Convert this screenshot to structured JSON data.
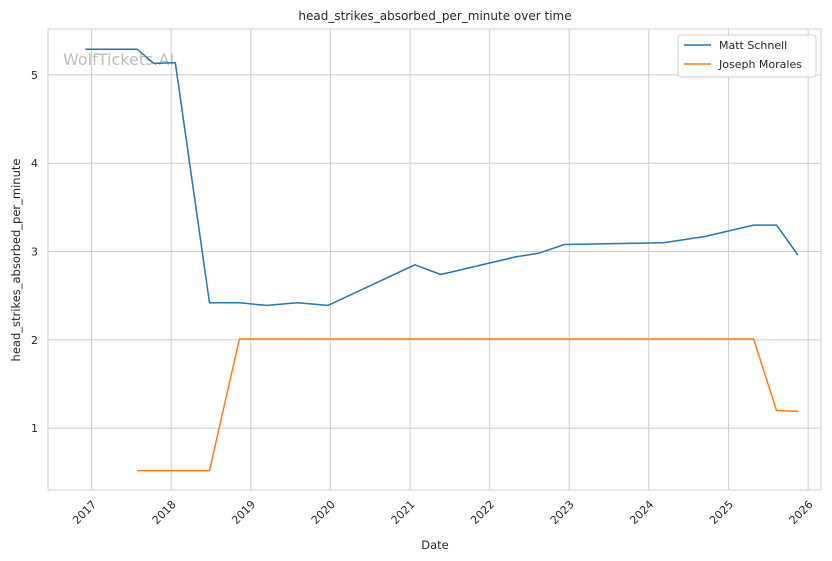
{
  "watermark": "WolfTickets.AI",
  "chart_data": {
    "type": "line",
    "title": "head_strikes_absorbed_per_minute over time",
    "xlabel": "Date",
    "ylabel": "head_strikes_absorbed_per_minute",
    "x_ticks": [
      "2017",
      "2018",
      "2019",
      "2020",
      "2021",
      "2022",
      "2023",
      "2024",
      "2025",
      "2026"
    ],
    "y_ticks": [
      "1",
      "2",
      "3",
      "4",
      "5"
    ],
    "xlim": [
      "2016-06-15",
      "2026-03-01"
    ],
    "ylim": [
      0.3,
      5.52
    ],
    "grid": true,
    "legend_position": "top-right",
    "series": [
      {
        "name": "Matt Schnell",
        "color": "#1f77b4",
        "points": [
          [
            "2016-12-03",
            5.29
          ],
          [
            "2017-07-29",
            5.29
          ],
          [
            "2017-10-14",
            5.13
          ],
          [
            "2018-01-20",
            5.14
          ],
          [
            "2018-06-26",
            2.42
          ],
          [
            "2018-11-10",
            2.42
          ],
          [
            "2019-03-15",
            2.39
          ],
          [
            "2019-08-03",
            2.42
          ],
          [
            "2019-12-21",
            2.39
          ],
          [
            "2021-01-23",
            2.85
          ],
          [
            "2021-05-22",
            2.74
          ],
          [
            "2022-04-30",
            2.94
          ],
          [
            "2022-08-13",
            2.98
          ],
          [
            "2022-12-10",
            3.08
          ],
          [
            "2024-03-09",
            3.1
          ],
          [
            "2024-09-14",
            3.17
          ],
          [
            "2025-04-26",
            3.3
          ],
          [
            "2025-08-09",
            3.3
          ],
          [
            "2025-11-15",
            2.96
          ]
        ]
      },
      {
        "name": "Joseph Morales",
        "color": "#ff7f0e",
        "points": [
          [
            "2017-07-29",
            0.52
          ],
          [
            "2018-06-26",
            0.52
          ],
          [
            "2018-11-10",
            2.01
          ],
          [
            "2025-04-26",
            2.01
          ],
          [
            "2025-08-09",
            1.2
          ],
          [
            "2025-11-15",
            1.19
          ]
        ]
      }
    ]
  }
}
